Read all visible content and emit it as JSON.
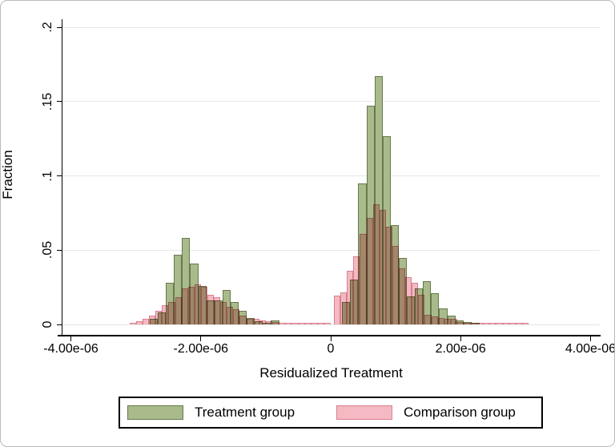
{
  "chart_data": {
    "type": "bar",
    "subtype": "overlaid-histograms",
    "title": "",
    "xlabel": "Residualized Treatment",
    "ylabel": "Fraction",
    "xlim": [
      -4.13e-06,
      4.142e-06
    ],
    "ylim": [
      0,
      0.2055
    ],
    "grid": "horizontal-light-gray",
    "x_ticks": [
      {
        "value": -4e-06,
        "label": "-4.00e-06"
      },
      {
        "value": -2e-06,
        "label": "-2.00e-06"
      },
      {
        "value": 0,
        "label": "0"
      },
      {
        "value": 2e-06,
        "label": "2.00e-06"
      },
      {
        "value": 4e-06,
        "label": "4.00e-06"
      }
    ],
    "y_ticks": [
      {
        "value": 0,
        "label": "0"
      },
      {
        "value": 0.05,
        "label": ".05"
      },
      {
        "value": 0.1,
        "label": ".1"
      },
      {
        "value": 0.15,
        "label": ".15"
      },
      {
        "value": 0.2,
        "label": ".2"
      }
    ],
    "legend": {
      "position": "bottom-center",
      "entries": [
        {
          "label": "Treatment group",
          "fill": "#a9ba8b",
          "edge": "#68794b"
        },
        {
          "label": "Comparison group",
          "fill": "#f4b9c3",
          "edge": "#d9808f"
        }
      ]
    },
    "series": [
      {
        "name": "Treatment group",
        "fill": "#a9ba8b",
        "edge": "#68794b",
        "binwidth": 1.245e-07,
        "segments": [
          {
            "x0": -2.787e-06,
            "heights": [
              0.004,
              0.008,
              0.028,
              0.047,
              0.058,
              0.041,
              0.026,
              0.016,
              0.016,
              0.023,
              0.015,
              0.009,
              0.0045,
              0.002,
              0.001,
              0.0026
            ]
          },
          {
            "x0": 1.76e-07,
            "heights": [
              0.015,
              0.03,
              0.095,
              0.147,
              0.167,
              0.127,
              0.067,
              0.045,
              0.019,
              0.0245,
              0.029,
              0.021,
              0.011,
              0.006,
              0.0028,
              0.0015,
              0.0011
            ]
          }
        ]
      },
      {
        "name": "Comparison group",
        "fill": "#f4b9c3",
        "edge": "#d9808f",
        "binwidth": 9.98e-08,
        "segments": [
          {
            "x0": -3.096e-06,
            "heights": [
              0.0013,
              0.0024,
              0.004,
              0.0062,
              0.0091,
              0.0131,
              0.0153,
              0.0186,
              0.0245,
              0.0255,
              0.0268,
              0.0255,
              0.0199,
              0.0186,
              0.015,
              0.012,
              0.01,
              0.006,
              0.0036,
              0.0036,
              0.0029,
              0.0022,
              0.0015,
              0.0011
            ]
          },
          {
            "x0": -6.99e-07,
            "heights": [
              0.0009,
              0.0009,
              0.0009,
              0.0009,
              0.0009,
              0.0009,
              0.0009
            ]
          },
          {
            "x0": 5.05e-08,
            "heights": [
              0.0195,
              0.0215,
              0.036,
              0.046,
              0.061,
              0.072,
              0.081,
              0.077,
              0.066,
              0.053,
              0.038,
              0.032,
              0.028,
              0.02,
              0.0065,
              0.0052,
              0.0045,
              0.004,
              0.0038,
              0.0018,
              0.0013,
              0.0012,
              0.0012,
              0.0012,
              0.0012,
              0.0012,
              0.0012,
              0.0012,
              0.0012,
              0.0012
            ]
          }
        ]
      }
    ]
  }
}
